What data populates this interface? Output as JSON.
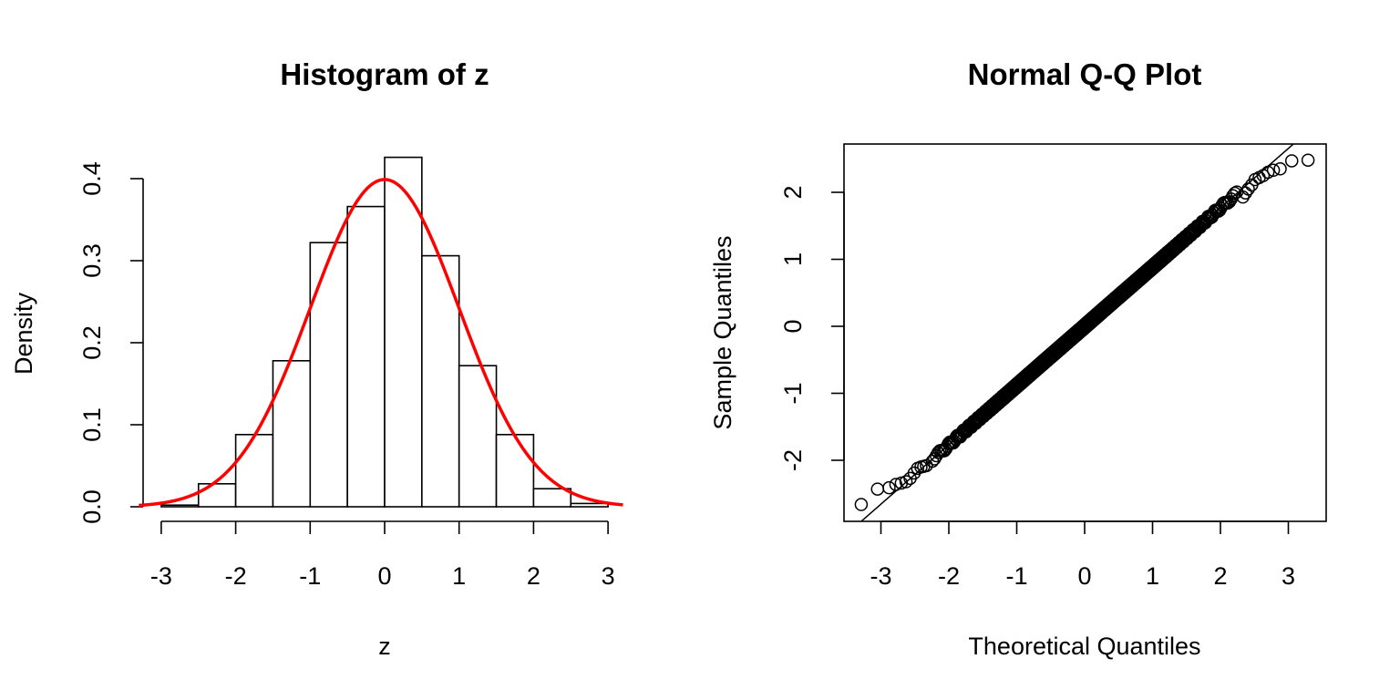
{
  "chart_data": [
    {
      "type": "bar",
      "title": "Histogram of z",
      "xlabel": "z",
      "ylabel": "Density",
      "breaks": [
        -3,
        -2.5,
        -2,
        -1.5,
        -1,
        -0.5,
        0,
        0.5,
        1,
        1.5,
        2,
        2.5,
        3
      ],
      "values": [
        0.002,
        0.028,
        0.088,
        0.178,
        0.322,
        0.366,
        0.426,
        0.306,
        0.172,
        0.088,
        0.022,
        0.004
      ],
      "xlim": [
        -3.3,
        3.2
      ],
      "ylim": [
        0,
        0.4
      ],
      "xticks": [
        "-3",
        "-2",
        "-1",
        "0",
        "1",
        "2",
        "3"
      ],
      "yticks": [
        "0.0",
        "0.1",
        "0.2",
        "0.3",
        "0.4"
      ],
      "overlay": {
        "type": "line",
        "description": "normal density N(0,1)",
        "color": "#ff0000"
      }
    },
    {
      "type": "scatter",
      "title": "Normal Q-Q Plot",
      "xlabel": "Theoretical Quantiles",
      "ylabel": "Sample Quantiles",
      "xlim": [
        -3.3,
        3.3
      ],
      "ylim": [
        -2.7,
        2.5
      ],
      "xticks": [
        "-3",
        "-2",
        "-1",
        "0",
        "1",
        "2",
        "3"
      ],
      "yticks": [
        "-2",
        "-1",
        "0",
        "1",
        "2"
      ],
      "n_points": 1000,
      "extreme_points": [
        {
          "x": -3.29,
          "y": -2.66
        },
        {
          "x": -3.05,
          "y": -2.43
        },
        {
          "x": -2.88,
          "y": -2.41
        },
        {
          "x": -2.78,
          "y": -2.36
        },
        {
          "x": -2.7,
          "y": -2.34
        },
        {
          "x": -2.63,
          "y": -2.32
        },
        {
          "x": -2.57,
          "y": -2.27
        },
        {
          "x": -2.51,
          "y": -2.19
        },
        {
          "x": -2.46,
          "y": -2.12
        },
        {
          "x": -2.41,
          "y": -2.1
        },
        {
          "x": -2.37,
          "y": -2.09
        },
        {
          "x": -2.33,
          "y": -2.08
        },
        {
          "x": 2.33,
          "y": 1.93
        },
        {
          "x": 2.37,
          "y": 1.99
        },
        {
          "x": 2.41,
          "y": 2.05
        },
        {
          "x": 2.46,
          "y": 2.11
        },
        {
          "x": 2.51,
          "y": 2.19
        },
        {
          "x": 2.57,
          "y": 2.22
        },
        {
          "x": 2.63,
          "y": 2.25
        },
        {
          "x": 2.7,
          "y": 2.3
        },
        {
          "x": 2.78,
          "y": 2.33
        },
        {
          "x": 2.88,
          "y": 2.35
        },
        {
          "x": 3.05,
          "y": 2.47
        },
        {
          "x": 3.29,
          "y": 2.48
        }
      ],
      "qq_line": {
        "slope": 0.885,
        "intercept": 0.0
      }
    }
  ]
}
